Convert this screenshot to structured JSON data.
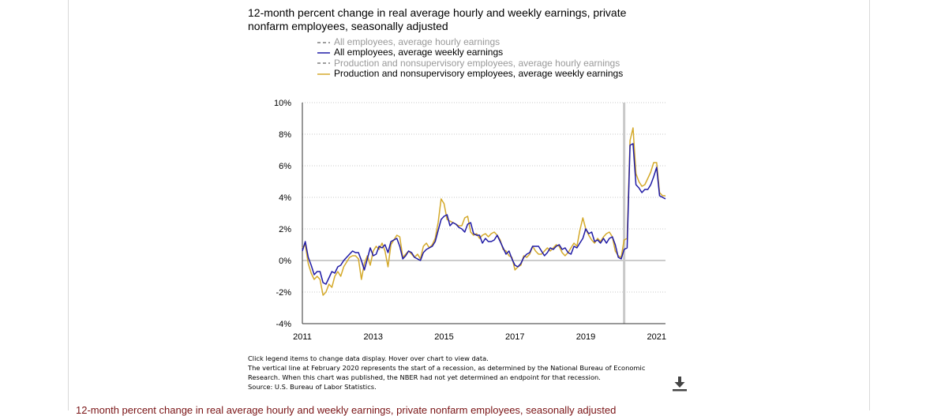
{
  "chart_title": "12-month percent change in real average hourly and weekly earnings, private nonfarm employees, seasonally adjusted",
  "legend": [
    {
      "label": "All employees, average hourly earnings",
      "color": "#7f7f7f",
      "dash": true,
      "active": false
    },
    {
      "label": "All employees, average weekly earnings",
      "color": "#1f1aa5",
      "dash": false,
      "active": true
    },
    {
      "label": "Production and nonsupervisory employees, average hourly earnings",
      "color": "#7f7f7f",
      "dash": true,
      "active": false
    },
    {
      "label": "Production and nonsupervisory employees, average weekly earnings",
      "color": "#d4a92a",
      "dash": false,
      "active": true
    }
  ],
  "notes": [
    "Click legend items to change data display. Hover over chart to view data.",
    "The vertical line at February 2020 represents the start of a recession, as determined by the National Bureau of Economic Research. When this chart was published, the NBER had not yet determined an endpoint for that recession.",
    "Source: U.S. Bureau of Labor Statistics."
  ],
  "download_icon": "download-icon",
  "bottom_heading": "12-month percent change in real average hourly and weekly earnings, private nonfarm employees, seasonally adjusted",
  "chart_data": {
    "type": "line",
    "title": "12-month percent change in real average hourly and weekly earnings, private nonfarm employees, seasonally adjusted",
    "xlabel": "",
    "ylabel": "",
    "xlim": [
      "2011-01",
      "2021-04"
    ],
    "ylim": [
      -4,
      10
    ],
    "x_ticks": [
      "2011",
      "2013",
      "2015",
      "2017",
      "2019",
      "2021"
    ],
    "y_ticks": [
      "-4%",
      "-2%",
      "0%",
      "2%",
      "4%",
      "6%",
      "8%",
      "10%"
    ],
    "y_tick_values": [
      -4,
      -2,
      0,
      2,
      4,
      6,
      8,
      10
    ],
    "grid": "horizontal dotted",
    "legend_position": "top",
    "recession_marker": "2020-02",
    "series": [
      {
        "name": "All employees, average weekly earnings",
        "color": "#1f1aa5",
        "points": [
          [
            "2011-01",
            0.6
          ],
          [
            "2011-02",
            1.2
          ],
          [
            "2011-03",
            0.2
          ],
          [
            "2011-04",
            -0.3
          ],
          [
            "2011-05",
            -0.9
          ],
          [
            "2011-06",
            -0.7
          ],
          [
            "2011-07",
            -0.7
          ],
          [
            "2011-08",
            -1.4
          ],
          [
            "2011-09",
            -1.5
          ],
          [
            "2011-10",
            -1.1
          ],
          [
            "2011-11",
            -0.7
          ],
          [
            "2011-12",
            -0.8
          ],
          [
            "2012-01",
            -0.4
          ],
          [
            "2012-02",
            -0.3
          ],
          [
            "2012-03",
            0.0
          ],
          [
            "2012-04",
            0.2
          ],
          [
            "2012-05",
            0.4
          ],
          [
            "2012-06",
            0.6
          ],
          [
            "2012-07",
            0.5
          ],
          [
            "2012-08",
            0.5
          ],
          [
            "2012-09",
            0.0
          ],
          [
            "2012-10",
            -0.6
          ],
          [
            "2012-11",
            0.1
          ],
          [
            "2012-12",
            0.8
          ],
          [
            "2013-01",
            0.3
          ],
          [
            "2013-02",
            0.4
          ],
          [
            "2013-03",
            0.9
          ],
          [
            "2013-04",
            0.8
          ],
          [
            "2013-05",
            1.0
          ],
          [
            "2013-06",
            0.5
          ],
          [
            "2013-07",
            1.2
          ],
          [
            "2013-08",
            1.3
          ],
          [
            "2013-09",
            1.4
          ],
          [
            "2013-10",
            0.9
          ],
          [
            "2013-11",
            0.1
          ],
          [
            "2013-12",
            0.3
          ],
          [
            "2014-01",
            0.6
          ],
          [
            "2014-02",
            0.5
          ],
          [
            "2014-03",
            0.2
          ],
          [
            "2014-04",
            0.1
          ],
          [
            "2014-05",
            0.0
          ],
          [
            "2014-06",
            0.5
          ],
          [
            "2014-07",
            0.7
          ],
          [
            "2014-08",
            0.8
          ],
          [
            "2014-09",
            0.9
          ],
          [
            "2014-10",
            1.2
          ],
          [
            "2014-11",
            1.9
          ],
          [
            "2014-12",
            2.6
          ],
          [
            "2015-01",
            2.8
          ],
          [
            "2015-02",
            2.9
          ],
          [
            "2015-03",
            2.2
          ],
          [
            "2015-04",
            2.4
          ],
          [
            "2015-05",
            2.3
          ],
          [
            "2015-06",
            2.1
          ],
          [
            "2015-07",
            2.0
          ],
          [
            "2015-08",
            1.8
          ],
          [
            "2015-09",
            2.3
          ],
          [
            "2015-10",
            2.4
          ],
          [
            "2015-11",
            1.7
          ],
          [
            "2015-12",
            1.6
          ],
          [
            "2016-01",
            1.6
          ],
          [
            "2016-02",
            1.1
          ],
          [
            "2016-03",
            1.4
          ],
          [
            "2016-04",
            1.2
          ],
          [
            "2016-05",
            1.2
          ],
          [
            "2016-06",
            1.3
          ],
          [
            "2016-07",
            1.6
          ],
          [
            "2016-08",
            1.2
          ],
          [
            "2016-09",
            0.8
          ],
          [
            "2016-10",
            0.4
          ],
          [
            "2016-11",
            0.6
          ],
          [
            "2016-12",
            0.1
          ],
          [
            "2017-01",
            -0.3
          ],
          [
            "2017-02",
            -0.4
          ],
          [
            "2017-03",
            -0.2
          ],
          [
            "2017-04",
            0.2
          ],
          [
            "2017-05",
            0.4
          ],
          [
            "2017-06",
            0.5
          ],
          [
            "2017-07",
            0.9
          ],
          [
            "2017-08",
            0.9
          ],
          [
            "2017-09",
            0.9
          ],
          [
            "2017-10",
            0.6
          ],
          [
            "2017-11",
            0.3
          ],
          [
            "2017-12",
            0.5
          ],
          [
            "2018-01",
            0.8
          ],
          [
            "2018-02",
            0.7
          ],
          [
            "2018-03",
            0.9
          ],
          [
            "2018-04",
            1.0
          ],
          [
            "2018-05",
            0.7
          ],
          [
            "2018-06",
            0.8
          ],
          [
            "2018-07",
            0.5
          ],
          [
            "2018-08",
            0.4
          ],
          [
            "2018-09",
            0.9
          ],
          [
            "2018-10",
            0.8
          ],
          [
            "2018-11",
            1.1
          ],
          [
            "2018-12",
            1.4
          ],
          [
            "2019-01",
            2.0
          ],
          [
            "2019-02",
            1.7
          ],
          [
            "2019-03",
            1.8
          ],
          [
            "2019-04",
            1.2
          ],
          [
            "2019-05",
            1.3
          ],
          [
            "2019-06",
            1.1
          ],
          [
            "2019-07",
            1.4
          ],
          [
            "2019-08",
            1.1
          ],
          [
            "2019-09",
            1.4
          ],
          [
            "2019-10",
            1.5
          ],
          [
            "2019-11",
            1.0
          ],
          [
            "2019-12",
            0.2
          ],
          [
            "2020-01",
            0.1
          ],
          [
            "2020-02",
            0.7
          ],
          [
            "2020-03",
            0.8
          ],
          [
            "2020-04",
            7.3
          ],
          [
            "2020-05",
            7.4
          ],
          [
            "2020-06",
            4.8
          ],
          [
            "2020-07",
            4.6
          ],
          [
            "2020-08",
            4.3
          ],
          [
            "2020-09",
            4.5
          ],
          [
            "2020-10",
            4.5
          ],
          [
            "2020-11",
            4.8
          ],
          [
            "2020-12",
            5.3
          ],
          [
            "2021-01",
            5.9
          ],
          [
            "2021-02",
            4.1
          ],
          [
            "2021-03",
            4.0
          ],
          [
            "2021-04",
            3.9
          ]
        ]
      },
      {
        "name": "Production and nonsupervisory employees, average weekly earnings",
        "color": "#d4a92a",
        "points": [
          [
            "2011-01",
            0.8
          ],
          [
            "2011-02",
            1.0
          ],
          [
            "2011-03",
            -0.2
          ],
          [
            "2011-04",
            -0.8
          ],
          [
            "2011-05",
            -1.2
          ],
          [
            "2011-06",
            -1.0
          ],
          [
            "2011-07",
            -1.2
          ],
          [
            "2011-08",
            -2.2
          ],
          [
            "2011-09",
            -2.0
          ],
          [
            "2011-10",
            -1.5
          ],
          [
            "2011-11",
            -1.7
          ],
          [
            "2011-12",
            -1.0
          ],
          [
            "2012-01",
            -0.7
          ],
          [
            "2012-02",
            -1.0
          ],
          [
            "2012-03",
            -0.4
          ],
          [
            "2012-04",
            -0.1
          ],
          [
            "2012-05",
            0.2
          ],
          [
            "2012-06",
            0.3
          ],
          [
            "2012-07",
            0.3
          ],
          [
            "2012-08",
            0.1
          ],
          [
            "2012-09",
            -1.2
          ],
          [
            "2012-10",
            -0.2
          ],
          [
            "2012-11",
            0.3
          ],
          [
            "2012-12",
            -0.3
          ],
          [
            "2013-01",
            0.6
          ],
          [
            "2013-02",
            0.9
          ],
          [
            "2013-03",
            0.7
          ],
          [
            "2013-04",
            1.1
          ],
          [
            "2013-05",
            0.6
          ],
          [
            "2013-06",
            -0.4
          ],
          [
            "2013-07",
            1.0
          ],
          [
            "2013-08",
            1.3
          ],
          [
            "2013-09",
            1.6
          ],
          [
            "2013-10",
            1.5
          ],
          [
            "2013-11",
            0.2
          ],
          [
            "2013-12",
            0.4
          ],
          [
            "2014-01",
            0.6
          ],
          [
            "2014-02",
            0.4
          ],
          [
            "2014-03",
            0.2
          ],
          [
            "2014-04",
            0.4
          ],
          [
            "2014-05",
            0.1
          ],
          [
            "2014-06",
            0.9
          ],
          [
            "2014-07",
            1.1
          ],
          [
            "2014-08",
            0.8
          ],
          [
            "2014-09",
            1.0
          ],
          [
            "2014-10",
            1.4
          ],
          [
            "2014-11",
            2.4
          ],
          [
            "2014-12",
            3.9
          ],
          [
            "2015-01",
            3.6
          ],
          [
            "2015-02",
            2.6
          ],
          [
            "2015-03",
            2.5
          ],
          [
            "2015-04",
            2.4
          ],
          [
            "2015-05",
            2.3
          ],
          [
            "2015-06",
            2.2
          ],
          [
            "2015-07",
            2.2
          ],
          [
            "2015-08",
            2.7
          ],
          [
            "2015-09",
            2.8
          ],
          [
            "2015-10",
            1.8
          ],
          [
            "2015-11",
            1.6
          ],
          [
            "2015-12",
            1.7
          ],
          [
            "2016-01",
            1.4
          ],
          [
            "2016-02",
            1.6
          ],
          [
            "2016-03",
            1.7
          ],
          [
            "2016-04",
            1.5
          ],
          [
            "2016-05",
            1.7
          ],
          [
            "2016-06",
            1.8
          ],
          [
            "2016-07",
            1.6
          ],
          [
            "2016-08",
            1.3
          ],
          [
            "2016-09",
            0.7
          ],
          [
            "2016-10",
            0.6
          ],
          [
            "2016-11",
            0.3
          ],
          [
            "2016-12",
            0.2
          ],
          [
            "2017-01",
            -0.6
          ],
          [
            "2017-02",
            -0.4
          ],
          [
            "2017-03",
            -0.3
          ],
          [
            "2017-04",
            0.3
          ],
          [
            "2017-05",
            0.2
          ],
          [
            "2017-06",
            0.4
          ],
          [
            "2017-07",
            0.9
          ],
          [
            "2017-08",
            0.6
          ],
          [
            "2017-09",
            0.4
          ],
          [
            "2017-10",
            0.4
          ],
          [
            "2017-11",
            0.6
          ],
          [
            "2017-12",
            0.8
          ],
          [
            "2018-01",
            0.6
          ],
          [
            "2018-02",
            0.8
          ],
          [
            "2018-03",
            1.0
          ],
          [
            "2018-04",
            0.9
          ],
          [
            "2018-05",
            0.5
          ],
          [
            "2018-06",
            0.3
          ],
          [
            "2018-07",
            0.5
          ],
          [
            "2018-08",
            0.8
          ],
          [
            "2018-09",
            1.1
          ],
          [
            "2018-10",
            0.9
          ],
          [
            "2018-11",
            1.9
          ],
          [
            "2018-12",
            2.7
          ],
          [
            "2019-01",
            2.0
          ],
          [
            "2019-02",
            1.6
          ],
          [
            "2019-03",
            1.3
          ],
          [
            "2019-04",
            1.1
          ],
          [
            "2019-05",
            1.4
          ],
          [
            "2019-06",
            1.2
          ],
          [
            "2019-07",
            1.5
          ],
          [
            "2019-08",
            1.7
          ],
          [
            "2019-09",
            1.8
          ],
          [
            "2019-10",
            1.5
          ],
          [
            "2019-11",
            0.6
          ],
          [
            "2019-12",
            0.3
          ],
          [
            "2020-01",
            0.2
          ],
          [
            "2020-02",
            1.3
          ],
          [
            "2020-03",
            1.4
          ],
          [
            "2020-04",
            7.6
          ],
          [
            "2020-05",
            8.4
          ],
          [
            "2020-06",
            5.5
          ],
          [
            "2020-07",
            5.0
          ],
          [
            "2020-08",
            4.7
          ],
          [
            "2020-09",
            4.8
          ],
          [
            "2020-10",
            5.2
          ],
          [
            "2020-11",
            5.6
          ],
          [
            "2020-12",
            6.2
          ],
          [
            "2021-01",
            6.2
          ],
          [
            "2021-02",
            4.3
          ],
          [
            "2021-03",
            4.1
          ],
          [
            "2021-04",
            4.1
          ]
        ]
      }
    ]
  }
}
